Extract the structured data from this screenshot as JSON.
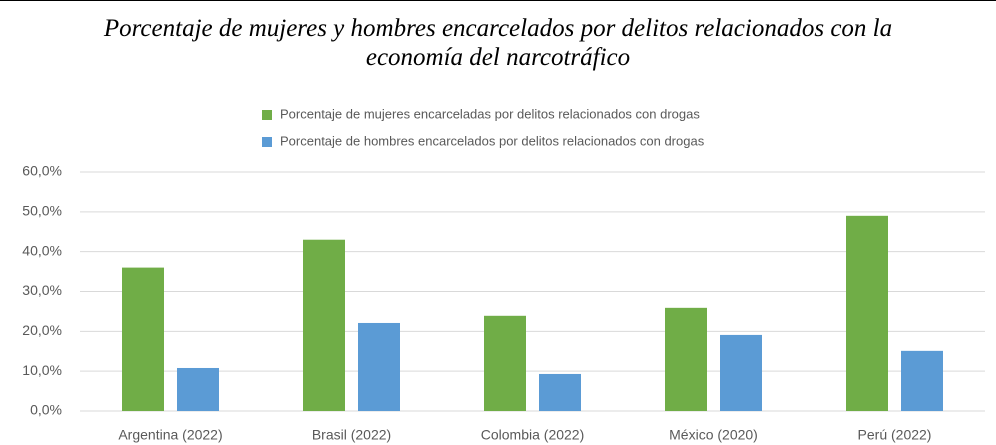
{
  "chart_data": {
    "type": "bar",
    "title": "Porcentaje de mujeres y hombres encarcelados por delitos relacionados con la economía del narcotráfico",
    "categories": [
      "Argentina (2022)",
      "Brasil (2022)",
      "Colombia (2022)",
      "México (2020)",
      "Perú (2022)"
    ],
    "series": [
      {
        "name": "Porcentaje de mujeres encarceladas por delitos relacionados con drogas",
        "color": "#70ad47",
        "values": [
          36,
          43,
          23.9,
          25.9,
          49
        ]
      },
      {
        "name": "Porcentaje de hombres encarcelados por delitos relacionados con drogas",
        "color": "#5b9bd5",
        "values": [
          10.8,
          22.1,
          9.3,
          19.1,
          15.1
        ]
      }
    ],
    "ylim": [
      0,
      60
    ],
    "yticks": [
      {
        "value": 0,
        "label": "0,0%"
      },
      {
        "value": 10,
        "label": "10,0%"
      },
      {
        "value": 20,
        "label": "20,0%"
      },
      {
        "value": 30,
        "label": "30,0%"
      },
      {
        "value": 40,
        "label": "40,0%"
      },
      {
        "value": 50,
        "label": "50,0%"
      },
      {
        "value": 60,
        "label": "60,0%"
      }
    ],
    "grid": true,
    "legend": "top"
  }
}
